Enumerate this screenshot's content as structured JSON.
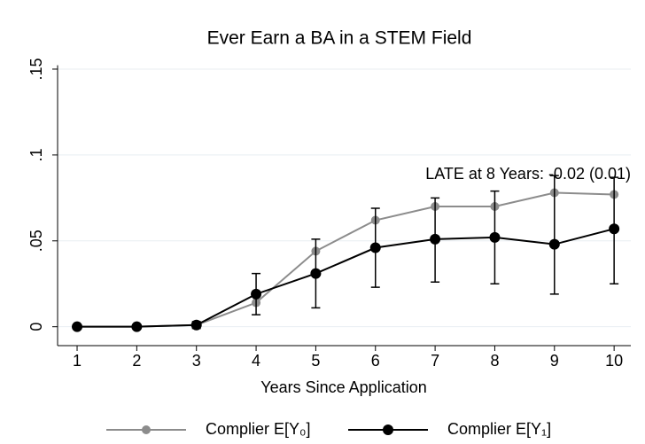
{
  "chart_data": {
    "type": "line",
    "title": "Ever Earn a BA in a STEM Field",
    "annotation": "LATE at 8 Years: -0.02 (0.01)",
    "x_label": "Years Since Application",
    "x": [
      1,
      2,
      3,
      4,
      5,
      6,
      7,
      8,
      9,
      10
    ],
    "xlim": [
      0.673,
      10.28
    ],
    "xticks": [
      1,
      2,
      3,
      4,
      5,
      6,
      7,
      8,
      9,
      10
    ],
    "ylim": [
      -0.011,
      0.16
    ],
    "yticks": [
      0,
      {
        "value": 0.05,
        "label": ".05"
      },
      {
        "value": 0.1,
        "label": ".1"
      },
      {
        "value": 0.15,
        "label": ".15"
      }
    ],
    "grid": true,
    "series": [
      {
        "name": "Complier E[Y₀]",
        "color": "#8c8c8c",
        "values": [
          0,
          0,
          0.001,
          0.014,
          0.044,
          0.062,
          0.07,
          0.07,
          0.078,
          0.077
        ]
      },
      {
        "name": "Complier E[Y₁]",
        "color": "#000000",
        "values": [
          0,
          0,
          0.001,
          0.019,
          0.031,
          0.046,
          0.051,
          0.052,
          0.048,
          0.057
        ],
        "ci_low": [
          0,
          0,
          -0.001,
          0.007,
          0.011,
          0.023,
          0.026,
          0.025,
          0.019,
          0.025
        ],
        "ci_high": [
          0,
          0,
          0.003,
          0.031,
          0.051,
          0.069,
          0.075,
          0.079,
          0.088,
          0.087
        ]
      }
    ]
  }
}
